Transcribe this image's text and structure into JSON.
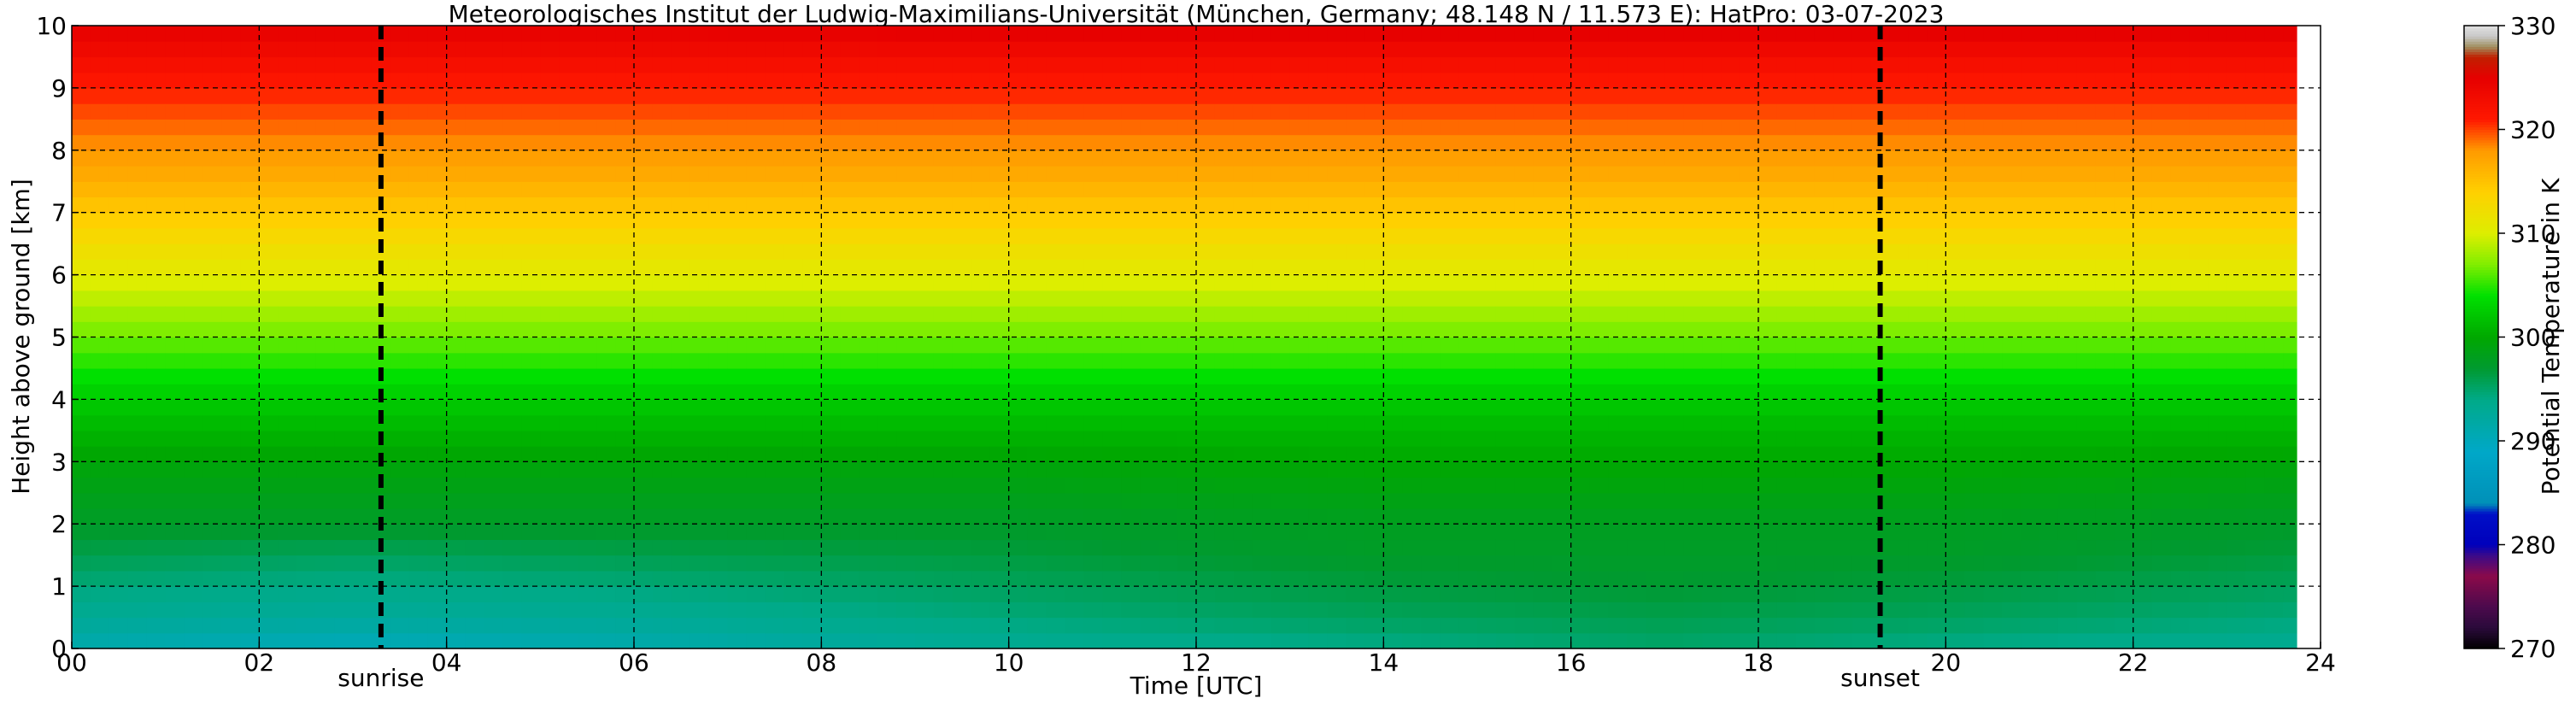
{
  "chart_data": {
    "type": "heatmap",
    "title": "Meteorologisches Institut der Ludwig-Maximilians-Universität (München, Germany; 48.148 N / 11.573 E):    HatPro: 03-07-2023",
    "xlabel": "Time [UTC]",
    "ylabel": "Height above ground [km]",
    "colorbar_label": "Potential Temperature in K",
    "xlim": [
      0,
      24
    ],
    "ylim": [
      0,
      10
    ],
    "x_ticks": [
      0,
      2,
      4,
      6,
      8,
      10,
      12,
      14,
      16,
      18,
      20,
      22,
      24
    ],
    "x_tick_labels": [
      "00",
      "02",
      "04",
      "06",
      "08",
      "10",
      "12",
      "14",
      "16",
      "18",
      "20",
      "22",
      "24"
    ],
    "y_ticks": [
      0,
      1,
      2,
      3,
      4,
      5,
      6,
      7,
      8,
      9,
      10
    ],
    "y_tick_labels": [
      "0",
      "1",
      "2",
      "3",
      "4",
      "5",
      "6",
      "7",
      "8",
      "9",
      "10"
    ],
    "colorbar_range": [
      270,
      330
    ],
    "colorbar_ticks": [
      270,
      280,
      290,
      300,
      310,
      320,
      330
    ],
    "colorbar_tick_labels": [
      "270",
      "280",
      "290",
      "300",
      "310",
      "320",
      "330"
    ],
    "grid": true,
    "events": [
      {
        "label": "sunrise",
        "x": 3.3
      },
      {
        "label": "sunset",
        "x": 19.3
      }
    ],
    "data_end_x": 23.75,
    "colormap": [
      {
        "value": 270,
        "color": "#000000"
      },
      {
        "value": 272,
        "color": "#2a0a3a"
      },
      {
        "value": 274,
        "color": "#4b0a4d"
      },
      {
        "value": 277,
        "color": "#8b0a4a"
      },
      {
        "value": 279,
        "color": "#3a0a8a"
      },
      {
        "value": 280,
        "color": "#0000bb"
      },
      {
        "value": 283,
        "color": "#0010c8"
      },
      {
        "value": 284,
        "color": "#0090b8"
      },
      {
        "value": 289,
        "color": "#00a8c8"
      },
      {
        "value": 294,
        "color": "#00aa88"
      },
      {
        "value": 297,
        "color": "#009a30"
      },
      {
        "value": 300,
        "color": "#00a800"
      },
      {
        "value": 304,
        "color": "#00e000"
      },
      {
        "value": 307,
        "color": "#80ee00"
      },
      {
        "value": 310,
        "color": "#ddee00"
      },
      {
        "value": 314,
        "color": "#ffd000"
      },
      {
        "value": 318,
        "color": "#ff9a00"
      },
      {
        "value": 321,
        "color": "#ff1800"
      },
      {
        "value": 325,
        "color": "#e60000"
      },
      {
        "value": 327,
        "color": "#c02000"
      },
      {
        "value": 328,
        "color": "#a09060"
      },
      {
        "value": 329,
        "color": "#c8c8c8"
      },
      {
        "value": 330,
        "color": "#e0e0e0"
      }
    ],
    "profile_heights_km": [
      0,
      0.5,
      1,
      1.5,
      2,
      2.5,
      3,
      3.5,
      4,
      4.5,
      5,
      5.5,
      6,
      6.5,
      7,
      7.5,
      8,
      8.5,
      9,
      9.5,
      10
    ],
    "profiles": [
      {
        "time": 0,
        "theta_K": [
          291,
          293,
          294.5,
          296,
          297.5,
          298.5,
          299.5,
          301,
          302.5,
          304.5,
          306.5,
          308.5,
          310.5,
          312.5,
          314.5,
          316.5,
          318,
          319.5,
          321,
          323,
          325
        ]
      },
      {
        "time": 3,
        "theta_K": [
          290,
          292.5,
          294,
          295.5,
          297.5,
          298.5,
          299.5,
          301,
          302.5,
          304.5,
          306.5,
          308.5,
          310.5,
          312.5,
          314.5,
          316.5,
          318,
          319.5,
          321,
          323,
          325
        ]
      },
      {
        "time": 6,
        "theta_K": [
          291,
          293,
          294.5,
          296,
          297.5,
          298.5,
          299.5,
          301,
          302.5,
          304.5,
          306.5,
          308.5,
          310.5,
          312.5,
          314.5,
          316.5,
          318,
          319.5,
          321,
          323,
          325
        ]
      },
      {
        "time": 10,
        "theta_K": [
          293,
          294.5,
          295.5,
          296.5,
          297.5,
          298.5,
          299.5,
          301,
          302.5,
          304.5,
          306.5,
          308.5,
          310.5,
          312.5,
          314.5,
          316.5,
          318,
          319.5,
          321,
          323,
          325.5
        ]
      },
      {
        "time": 14,
        "theta_K": [
          294,
          295.5,
          296.5,
          297.5,
          298,
          299,
          300,
          301,
          302.5,
          304.5,
          306.5,
          308.5,
          310.5,
          312.5,
          314.5,
          316.5,
          318,
          319.5,
          321,
          323,
          325.5
        ]
      },
      {
        "time": 17,
        "theta_K": [
          295,
          296,
          297,
          297.5,
          298,
          299,
          300,
          301,
          302.5,
          304.5,
          306.5,
          308.5,
          310.5,
          312.5,
          314.5,
          316.5,
          318,
          319.5,
          321,
          323,
          325.5
        ]
      },
      {
        "time": 20,
        "theta_K": [
          294,
          295.5,
          296.5,
          297.5,
          298,
          299,
          300,
          301,
          302.5,
          304.5,
          306.5,
          308.5,
          310.5,
          312.5,
          314.5,
          316.5,
          318,
          319.5,
          321,
          323,
          325.5
        ]
      },
      {
        "time": 24,
        "theta_K": [
          293,
          294.5,
          295.5,
          296.5,
          297.5,
          298.5,
          299.5,
          301,
          302.5,
          304.5,
          306.5,
          308.5,
          310.5,
          312.5,
          314.5,
          316.5,
          318,
          319.5,
          321,
          323,
          325.5
        ]
      }
    ]
  }
}
